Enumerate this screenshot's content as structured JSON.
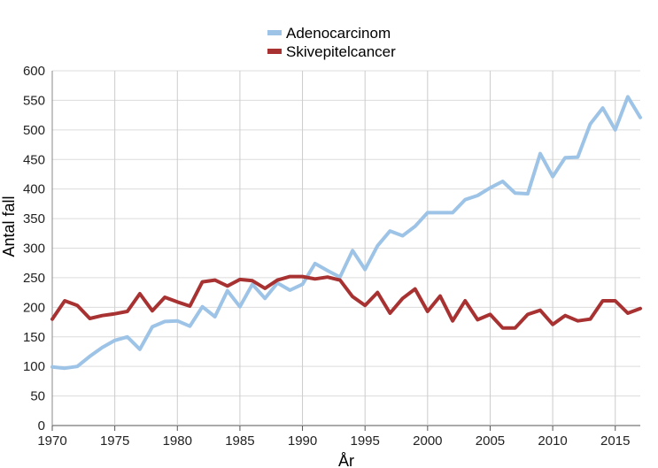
{
  "chart_data": {
    "type": "line",
    "title": "",
    "xlabel": "År",
    "ylabel": "Antal fall",
    "xlim": [
      1970,
      2017
    ],
    "ylim": [
      0,
      600
    ],
    "x_ticks": [
      1970,
      1975,
      1980,
      1985,
      1990,
      1995,
      2000,
      2005,
      2010,
      2015
    ],
    "y_ticks": [
      0,
      50,
      100,
      150,
      200,
      250,
      300,
      350,
      400,
      450,
      500,
      550,
      600
    ],
    "grid": true,
    "legend_position": "top-center",
    "x": [
      1970,
      1971,
      1972,
      1973,
      1974,
      1975,
      1976,
      1977,
      1978,
      1979,
      1980,
      1981,
      1982,
      1983,
      1984,
      1985,
      1986,
      1987,
      1988,
      1989,
      1990,
      1991,
      1992,
      1993,
      1994,
      1995,
      1996,
      1997,
      1998,
      1999,
      2000,
      2001,
      2002,
      2003,
      2004,
      2005,
      2006,
      2007,
      2008,
      2009,
      2010,
      2011,
      2012,
      2013,
      2014,
      2015,
      2016,
      2017
    ],
    "series": [
      {
        "name": "Adenocarcinom",
        "color": "#9dc3e6",
        "values": [
          99,
          97,
          100,
          117,
          132,
          144,
          150,
          129,
          167,
          176,
          177,
          168,
          201,
          184,
          228,
          201,
          239,
          215,
          241,
          229,
          239,
          274,
          262,
          251,
          296,
          264,
          304,
          329,
          321,
          337,
          360,
          360,
          360,
          382,
          389,
          402,
          413,
          393,
          392,
          460,
          421,
          453,
          454,
          510,
          537,
          500,
          556,
          521
        ]
      },
      {
        "name": "Skivepitelcancer",
        "color": "#a83232",
        "values": [
          180,
          211,
          203,
          181,
          186,
          189,
          193,
          223,
          194,
          217,
          209,
          202,
          243,
          246,
          236,
          247,
          245,
          232,
          246,
          252,
          252,
          248,
          251,
          246,
          218,
          203,
          225,
          190,
          215,
          231,
          193,
          219,
          177,
          211,
          179,
          188,
          165,
          165,
          188,
          195,
          171,
          186,
          177,
          180,
          211,
          211,
          190,
          198
        ]
      }
    ]
  }
}
